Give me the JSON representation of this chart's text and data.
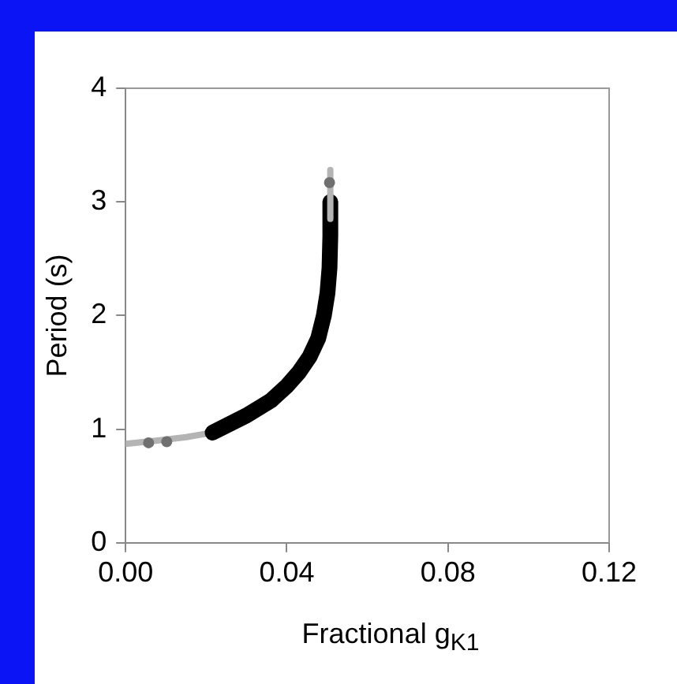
{
  "chart_data": {
    "type": "line",
    "xlabel": "Fractional g$_{K1}$",
    "ylabel": "Period (s)",
    "xlim": [
      0,
      0.12
    ],
    "xticks": [
      {
        "value": 0,
        "label": "0.00"
      },
      {
        "value": 0.04,
        "label": "0.04"
      },
      {
        "value": 0.08,
        "label": "0.08"
      },
      {
        "value": 0.12,
        "label": "0.12"
      }
    ],
    "ylim": [
      0,
      4
    ],
    "yticks": [
      0,
      1,
      2,
      3,
      4
    ],
    "grid": false,
    "legend": false,
    "marker": "none",
    "series": [
      {
        "color": "#b4b4b4",
        "x": [
          0,
          0.008,
          0.015,
          0.0216
        ],
        "values": [
          0.87,
          0.9,
          0.93,
          0.97
        ]
      },
      {
        "color": "#000000",
        "x": [
          0.0216,
          0.03,
          0.036,
          0.04,
          0.043,
          0.0457,
          0.0478,
          0.0492,
          0.0501,
          0.0506,
          0.0508,
          0.0508
        ],
        "values": [
          0.97,
          1.12,
          1.25,
          1.38,
          1.5,
          1.64,
          1.8,
          2.0,
          2.2,
          2.42,
          2.7,
          3.0
        ]
      },
      {
        "color": "#b4b4b4",
        "x": [
          0.0508,
          0.0508,
          0.0508
        ],
        "values": [
          2.85,
          3.1,
          3.28
        ]
      },
      {
        "type": "scatter",
        "color": "#707070",
        "marker": "circle",
        "x": [
          0.0057,
          0.0102,
          0.0506
        ],
        "values": [
          0.88,
          0.89,
          3.17
        ]
      }
    ]
  }
}
